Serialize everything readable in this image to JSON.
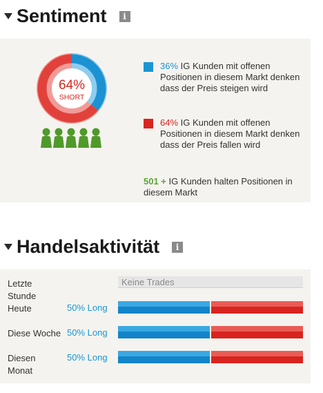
{
  "sentiment": {
    "title": "Sentiment",
    "info_icon": "i",
    "donut": {
      "percent_label": "64%",
      "direction_label": "SHORT",
      "long_pct": 36,
      "short_pct": 64,
      "long_color": "#1a96d4",
      "short_color": "#d9251f"
    },
    "people_icons": 5,
    "long": {
      "percent": "36%",
      "text": "IG Kunden mit offenen Positionen in diesem Markt denken dass der Preis steigen wird"
    },
    "short": {
      "percent": "64%",
      "text": "IG Kunden mit offenen Positionen in diesem Markt denken dass der Preis fallen wird"
    },
    "clients": {
      "count": "501 +",
      "text": "IG Kunden halten Positionen in diesem Markt"
    }
  },
  "handel": {
    "title": "Handelsaktivität",
    "info_icon": "i",
    "rows": [
      {
        "label": "Letzte Stunde",
        "empty_text": "Keine Trades"
      },
      {
        "label": "Heute",
        "value": "50% Long",
        "long_pct": 50
      },
      {
        "label": "Diese Woche",
        "value": "50% Long",
        "long_pct": 50
      },
      {
        "label": "Diesen Monat",
        "value": "50% Long",
        "long_pct": 50
      }
    ]
  }
}
